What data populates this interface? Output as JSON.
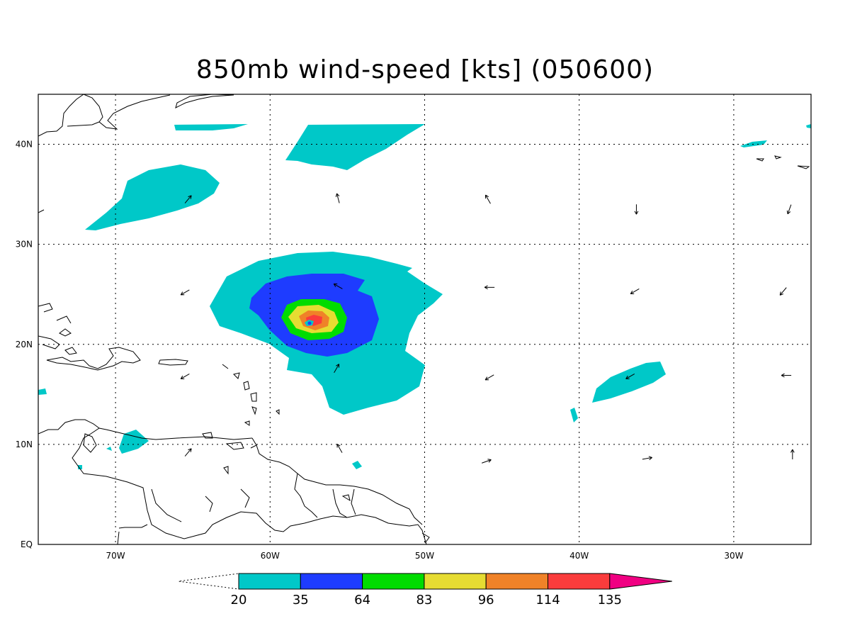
{
  "title": "850mb wind-speed [kts] (050600)",
  "map": {
    "lon_range": [
      -75,
      -25
    ],
    "lat_range": [
      0,
      45
    ],
    "lon_ticks": [
      {
        "value": -70,
        "label": "70W"
      },
      {
        "value": -60,
        "label": "60W"
      },
      {
        "value": -50,
        "label": "50W"
      },
      {
        "value": -40,
        "label": "40W"
      },
      {
        "value": -30,
        "label": "30W"
      }
    ],
    "lat_ticks": [
      {
        "value": 0,
        "label": "EQ"
      },
      {
        "value": 10,
        "label": "10N"
      },
      {
        "value": 20,
        "label": "20N"
      },
      {
        "value": 30,
        "label": "30N"
      },
      {
        "value": 40,
        "label": "40N"
      }
    ],
    "grid": "dotted",
    "storm_center": {
      "lon": -57.3,
      "lat": 22.2
    }
  },
  "colorbar": {
    "levels": [
      "20",
      "35",
      "64",
      "83",
      "96",
      "114",
      "135"
    ],
    "colors": [
      "#00c8c8",
      "#1e3cff",
      "#00dc00",
      "#e6dc32",
      "#f08228",
      "#fa3c3c",
      "#f00082"
    ]
  },
  "wind_vectors": [
    {
      "lon": -65.3,
      "lat": 34.5,
      "dir": 40
    },
    {
      "lon": -55.6,
      "lat": 34.6,
      "dir": 345
    },
    {
      "lon": -45.9,
      "lat": 34.5,
      "dir": 330
    },
    {
      "lon": -36.3,
      "lat": 33.5,
      "dir": 180
    },
    {
      "lon": -26.4,
      "lat": 33.5,
      "dir": 200
    },
    {
      "lon": -65.5,
      "lat": 25.2,
      "dir": 240
    },
    {
      "lon": -55.6,
      "lat": 25.8,
      "dir": 300
    },
    {
      "lon": -45.8,
      "lat": 25.7,
      "dir": 270
    },
    {
      "lon": -36.4,
      "lat": 25.3,
      "dir": 240
    },
    {
      "lon": -26.8,
      "lat": 25.3,
      "dir": 220
    },
    {
      "lon": -65.5,
      "lat": 16.8,
      "dir": 240
    },
    {
      "lon": -55.7,
      "lat": 17.6,
      "dir": 30
    },
    {
      "lon": -45.8,
      "lat": 16.7,
      "dir": 240
    },
    {
      "lon": -36.7,
      "lat": 16.8,
      "dir": 240
    },
    {
      "lon": -26.6,
      "lat": 16.9,
      "dir": 270
    },
    {
      "lon": -65.3,
      "lat": 9.2,
      "dir": 40
    },
    {
      "lon": -55.5,
      "lat": 9.6,
      "dir": 330
    },
    {
      "lon": -46.0,
      "lat": 8.3,
      "dir": 70
    },
    {
      "lon": -35.6,
      "lat": 8.6,
      "dir": 80
    },
    {
      "lon": -26.2,
      "lat": 9.0,
      "dir": 0
    }
  ]
}
